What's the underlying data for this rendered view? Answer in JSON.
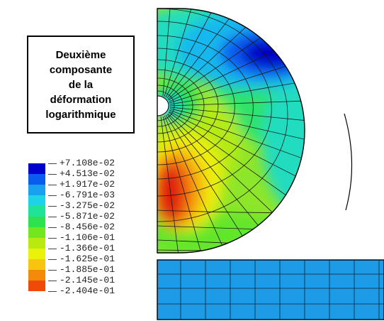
{
  "title": {
    "lines": [
      "Deuxième",
      "composante",
      "de la",
      "déformation",
      "logarithmique"
    ]
  },
  "legend": {
    "labels": [
      "+7.108e-02",
      "+4.513e-02",
      "+1.917e-02",
      "-6.791e-03",
      "-3.275e-02",
      "-5.871e-02",
      "-8.456e-02",
      "-1.106e-01",
      "-1.366e-01",
      "-1.625e-01",
      "-1.885e-01",
      "-2.145e-01",
      "-2.404e-01"
    ],
    "colors": [
      "#0000cc",
      "#0a5cf0",
      "#1aa0f0",
      "#1ed3e6",
      "#20e39a",
      "#2ee24e",
      "#72e61e",
      "#b8ea10",
      "#eaf20a",
      "#f7c410",
      "#f58a0a",
      "#f04a08"
    ]
  },
  "colors": {
    "punch_blue": "#1e9be6",
    "mesh_line": "#1a1a1a",
    "max_red": "#e01a0a"
  }
}
